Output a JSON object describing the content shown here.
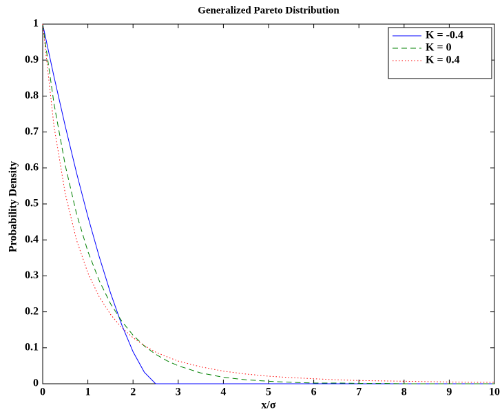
{
  "chart_data": {
    "type": "line",
    "title": "Generalized Pareto Distribution",
    "x_label": "x/σ",
    "y_label": "Probability Density",
    "x": [
      0,
      0.25,
      0.5,
      0.75,
      1,
      1.25,
      1.5,
      1.75,
      2,
      2.25,
      2.5,
      2.75,
      3,
      3.5,
      4,
      4.5,
      5,
      5.5,
      6,
      6.5,
      7,
      7.5,
      8,
      8.5,
      9,
      9.5,
      10
    ],
    "series": [
      {
        "name": "K = -0.4",
        "color": "#0000ff",
        "dash": "solid",
        "values": [
          1,
          0.854,
          0.716,
          0.586,
          0.465,
          0.354,
          0.253,
          0.164,
          0.089,
          0.032,
          0,
          0,
          0,
          0,
          0,
          0,
          0,
          0,
          0,
          0,
          0,
          0,
          0,
          0,
          0,
          0,
          0
        ]
      },
      {
        "name": "K = 0",
        "color": "#008000",
        "dash": "dashed",
        "values": [
          1,
          0.779,
          0.607,
          0.472,
          0.368,
          0.287,
          0.223,
          0.174,
          0.135,
          0.105,
          0.082,
          0.064,
          0.05,
          0.03,
          0.018,
          0.011,
          0.007,
          0.004,
          0.002,
          0.002,
          0.001,
          0.001,
          0,
          0,
          0,
          0,
          0
        ]
      },
      {
        "name": "K = 0.4",
        "color": "#ff0000",
        "dash": "dotted",
        "values": [
          1,
          0.716,
          0.528,
          0.399,
          0.308,
          0.242,
          0.193,
          0.156,
          0.128,
          0.106,
          0.088,
          0.075,
          0.063,
          0.047,
          0.035,
          0.027,
          0.021,
          0.017,
          0.014,
          0.011,
          0.009,
          0.008,
          0.007,
          0.006,
          0.005,
          0.004,
          0.004
        ]
      }
    ],
    "xlim": [
      0,
      10
    ],
    "xticks": [
      0,
      1,
      2,
      3,
      4,
      5,
      6,
      7,
      8,
      9,
      10
    ],
    "ylim": [
      0,
      1
    ],
    "yticks": [
      0,
      0.1,
      0.2,
      0.3,
      0.4,
      0.5,
      0.6,
      0.7,
      0.8,
      0.9,
      1
    ],
    "legend": "upper right"
  }
}
